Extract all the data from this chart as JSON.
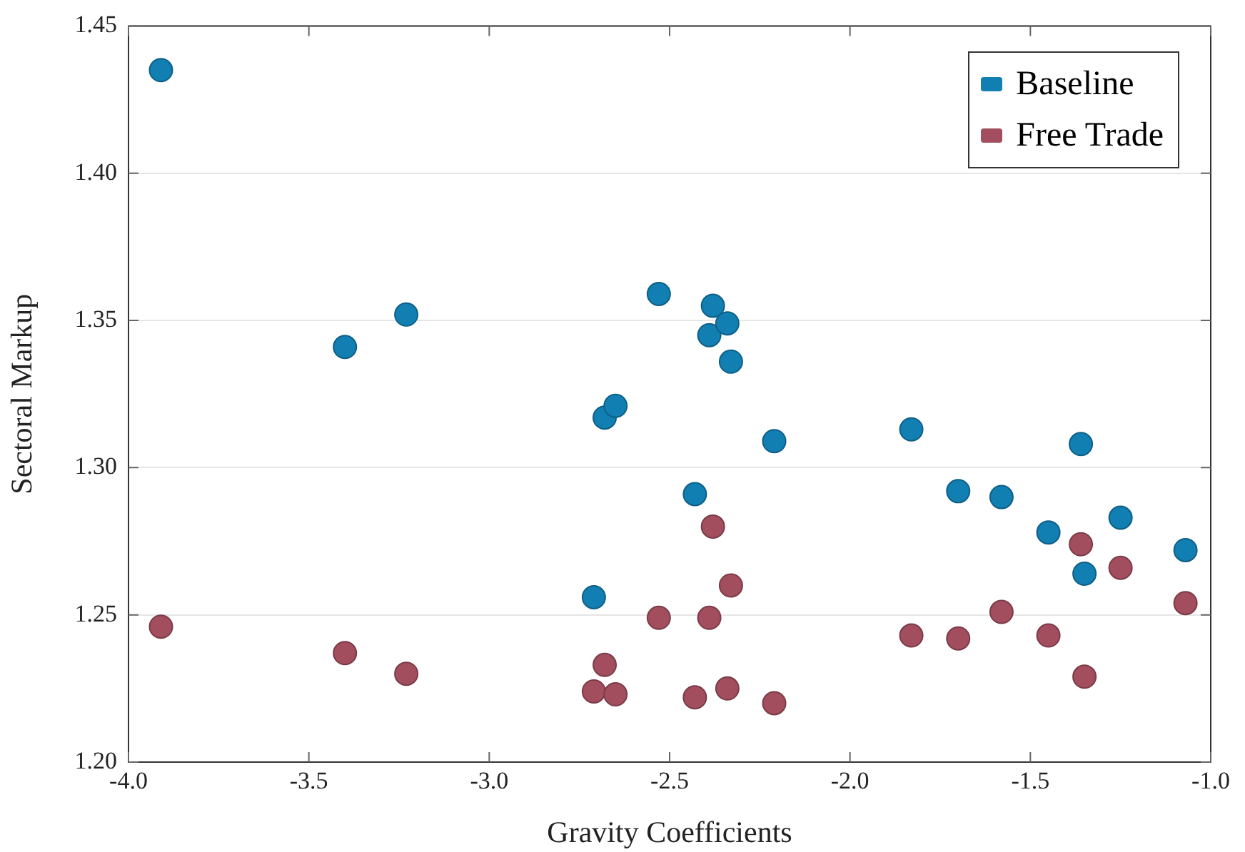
{
  "chart_data": {
    "type": "scatter",
    "xlabel": "Gravity Coefficients",
    "ylabel": "Sectoral Markup",
    "x": [
      -3.91,
      -3.4,
      -3.23,
      -2.71,
      -2.68,
      -2.65,
      -2.53,
      -2.43,
      -2.39,
      -2.38,
      -2.34,
      -2.33,
      -2.21,
      -1.83,
      -1.7,
      -1.58,
      -1.45,
      -1.36,
      -1.35,
      -1.25,
      -1.07
    ],
    "series": [
      {
        "name": "Baseline",
        "color": "#127fb3",
        "values": [
          1.435,
          1.341,
          1.352,
          1.256,
          1.317,
          1.321,
          1.359,
          1.291,
          1.345,
          1.355,
          1.349,
          1.336,
          1.309,
          1.313,
          1.292,
          1.29,
          1.278,
          1.308,
          1.264,
          1.283,
          1.272
        ]
      },
      {
        "name": "Free Trade",
        "color": "#a34e5f",
        "values": [
          1.246,
          1.237,
          1.23,
          1.224,
          1.233,
          1.223,
          1.249,
          1.222,
          1.249,
          1.28,
          1.225,
          1.26,
          1.22,
          1.243,
          1.242,
          1.251,
          1.243,
          1.274,
          1.229,
          1.266,
          1.254
        ]
      }
    ],
    "xlim": [
      -4,
      -1
    ],
    "xticks": [
      {
        "value": -4,
        "label": "-4.0"
      },
      {
        "value": -3.5,
        "label": "-3.5"
      },
      {
        "value": -3,
        "label": "-3.0"
      },
      {
        "value": -2.5,
        "label": "-2.5"
      },
      {
        "value": -2,
        "label": "-2.0"
      },
      {
        "value": -1.5,
        "label": "-1.5"
      },
      {
        "value": -1,
        "label": "-1.0"
      }
    ],
    "ylim": [
      1.2,
      1.45
    ],
    "yticks": [
      {
        "value": 1.2,
        "label": "1.20"
      },
      {
        "value": 1.25,
        "label": "1.25"
      },
      {
        "value": 1.3,
        "label": "1.30"
      },
      {
        "value": 1.35,
        "label": "1.35"
      },
      {
        "value": 1.4,
        "label": "1.40"
      },
      {
        "value": 1.45,
        "label": "1.45"
      }
    ],
    "grid": "y",
    "legend": "top right",
    "marker": "circle"
  }
}
